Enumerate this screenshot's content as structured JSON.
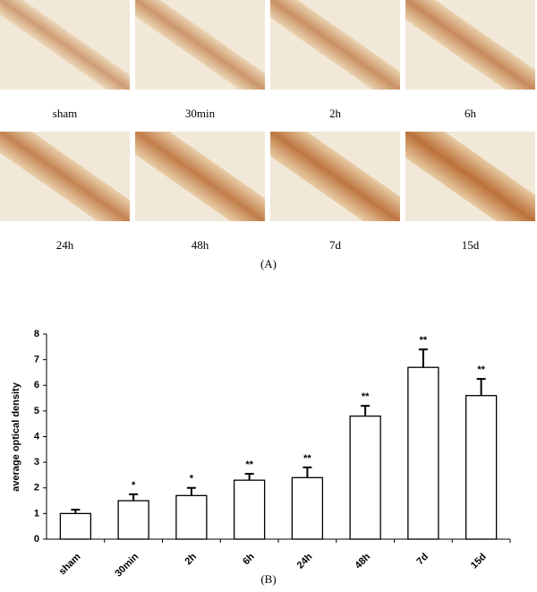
{
  "panel_a": {
    "images": [
      "sham",
      "30min",
      "2h",
      "6h",
      "24h",
      "48h",
      "7d",
      "15d"
    ],
    "label": "(A)"
  },
  "panel_b_label": "(B)",
  "chart_data": {
    "type": "bar",
    "y_label": "average optical density",
    "categories": [
      "sham",
      "30min",
      "2h",
      "6h",
      "24h",
      "48h",
      "7d",
      "15d"
    ],
    "values": [
      1.0,
      1.5,
      1.7,
      2.3,
      2.4,
      4.8,
      6.7,
      5.6
    ],
    "errors": [
      0.15,
      0.25,
      0.3,
      0.25,
      0.4,
      0.4,
      0.7,
      0.65
    ],
    "annotations": [
      null,
      "*",
      "*",
      "**",
      "**",
      "**",
      "**",
      "**"
    ],
    "color": "#ffffff",
    "ylim": [
      0,
      8
    ],
    "yticks": [
      0,
      1,
      2,
      3,
      4,
      5,
      6,
      7,
      8
    ],
    "grid": false
  }
}
